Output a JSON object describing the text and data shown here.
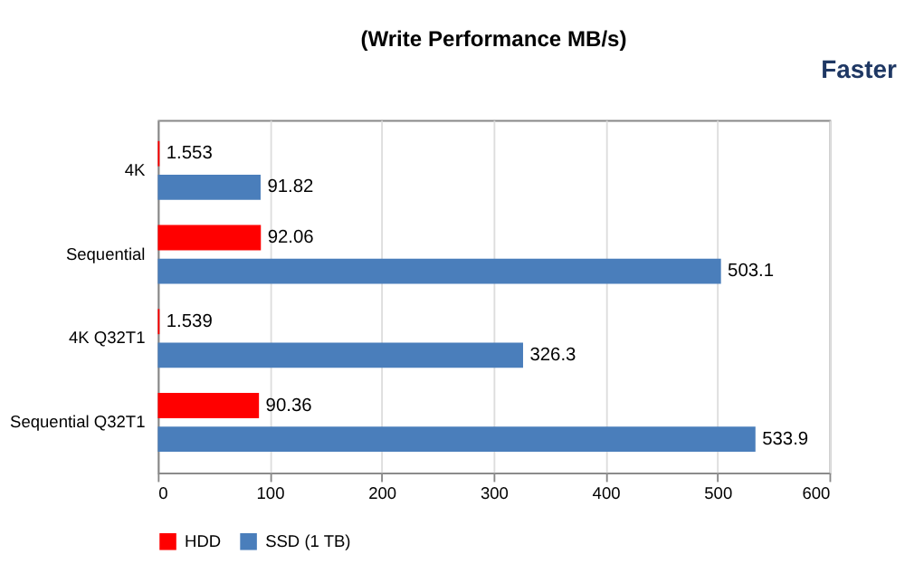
{
  "chart_data": {
    "type": "bar",
    "orientation": "horizontal",
    "subtitle": "(Write Performance MB/s)",
    "categories": [
      "4K",
      "Sequential",
      "4K Q32T1",
      "Sequential Q32T1"
    ],
    "series": [
      {
        "name": "HDD",
        "color": "#ff0000",
        "values": [
          1.553,
          92.06,
          1.539,
          90.36
        ]
      },
      {
        "name": "SSD (1 TB)",
        "color": "#4a7ebb",
        "values": [
          91.82,
          503.1,
          326.3,
          533.9
        ]
      }
    ],
    "xlim": [
      0,
      600
    ],
    "xticks": [
      0,
      100,
      200,
      300,
      400,
      500,
      600
    ],
    "grid": "x",
    "legend": "bottom",
    "data_labels": true,
    "annotations": [
      "Faster"
    ]
  }
}
